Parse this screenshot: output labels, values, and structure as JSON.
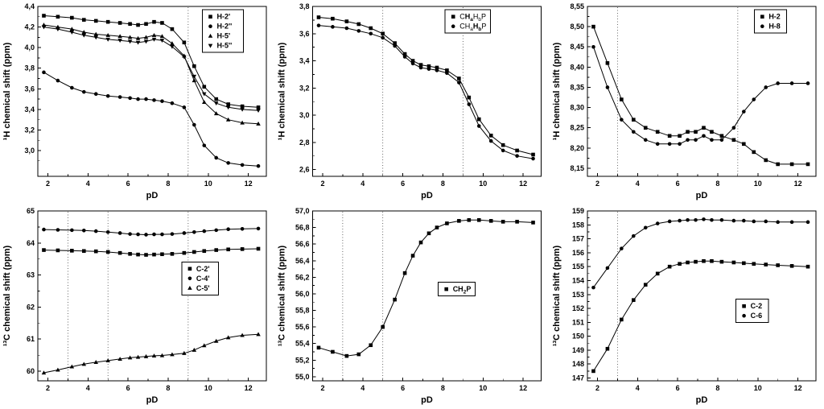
{
  "colors": {
    "foreground": "#000000",
    "background": "#ffffff"
  },
  "chart_data": [
    {
      "name": "h1-sugar-protons",
      "type": "line",
      "xlabel": "pD",
      "ylabel": "¹H chemical shift (ppm)",
      "xlim": [
        1.5,
        12.9
      ],
      "ylim": [
        2.75,
        4.4
      ],
      "xticks": [
        2,
        4,
        6,
        8,
        10,
        12
      ],
      "yticks": [
        3.0,
        3.2,
        3.4,
        3.6,
        3.8,
        4.0,
        4.2,
        4.4
      ],
      "ytick_decimals": 1,
      "decimal_comma": true,
      "grid": false,
      "vlines": [
        9
      ],
      "legend": {
        "x": 0.72,
        "y": 0.02
      },
      "x": [
        1.8,
        2.5,
        3.2,
        3.8,
        4.4,
        5.0,
        5.6,
        6.1,
        6.5,
        6.9,
        7.3,
        7.7,
        8.2,
        8.8,
        9.3,
        9.8,
        10.4,
        11.0,
        11.7,
        12.5
      ],
      "series": [
        {
          "label": "**H-2'**",
          "marker": "square",
          "y": [
            4.31,
            4.3,
            4.29,
            4.27,
            4.26,
            4.25,
            4.24,
            4.23,
            4.22,
            4.23,
            4.25,
            4.24,
            4.18,
            4.05,
            3.82,
            3.62,
            3.5,
            3.45,
            3.43,
            3.42
          ]
        },
        {
          "label": "**H-2''**",
          "marker": "circle",
          "y": [
            3.76,
            3.68,
            3.61,
            3.57,
            3.55,
            3.53,
            3.52,
            3.51,
            3.5,
            3.5,
            3.49,
            3.48,
            3.46,
            3.42,
            3.25,
            3.05,
            2.93,
            2.88,
            2.86,
            2.85
          ]
        },
        {
          "label": "**H-5'**",
          "marker": "triangle-up",
          "y": [
            4.22,
            4.2,
            4.18,
            4.15,
            4.13,
            4.12,
            4.11,
            4.1,
            4.09,
            4.1,
            4.12,
            4.11,
            4.04,
            3.92,
            3.68,
            3.47,
            3.36,
            3.3,
            3.27,
            3.26
          ]
        },
        {
          "label": "**H-5''**",
          "marker": "triangle-down",
          "y": [
            4.2,
            4.18,
            4.15,
            4.12,
            4.1,
            4.08,
            4.07,
            4.06,
            4.05,
            4.06,
            4.08,
            4.07,
            4.01,
            3.91,
            3.72,
            3.55,
            3.46,
            3.42,
            3.4,
            3.39
          ]
        }
      ]
    },
    {
      "name": "h1-pch2-protons",
      "type": "line",
      "xlabel": "pD",
      "ylabel": "¹H chemical shift (ppm)",
      "xlim": [
        1.5,
        12.9
      ],
      "ylim": [
        2.55,
        3.8
      ],
      "xticks": [
        2,
        4,
        6,
        8,
        10,
        12
      ],
      "yticks": [
        2.6,
        2.8,
        3.0,
        3.2,
        3.4,
        3.6,
        3.8
      ],
      "ytick_decimals": 1,
      "decimal_comma": true,
      "grid": false,
      "vlines": [
        5,
        9
      ],
      "legend": {
        "x": 0.58,
        "y": 0.02
      },
      "x": [
        1.8,
        2.5,
        3.2,
        3.8,
        4.4,
        5.0,
        5.6,
        6.1,
        6.5,
        6.9,
        7.3,
        7.7,
        8.2,
        8.8,
        9.3,
        9.8,
        10.4,
        11.0,
        11.7,
        12.5
      ],
      "series": [
        {
          "label": "C**H**_{**a**}H_{b}P",
          "marker": "square",
          "y": [
            3.72,
            3.71,
            3.69,
            3.67,
            3.64,
            3.6,
            3.53,
            3.45,
            3.4,
            3.37,
            3.36,
            3.35,
            3.33,
            3.27,
            3.13,
            2.97,
            2.85,
            2.78,
            2.74,
            2.71
          ]
        },
        {
          "label": "CH_{a}**H**_{**b**}P",
          "marker": "circle",
          "y": [
            3.66,
            3.65,
            3.64,
            3.62,
            3.6,
            3.57,
            3.51,
            3.43,
            3.38,
            3.35,
            3.34,
            3.33,
            3.31,
            3.24,
            3.08,
            2.92,
            2.81,
            2.74,
            2.7,
            2.68
          ]
        }
      ]
    },
    {
      "name": "h1-base-protons",
      "type": "line",
      "xlabel": "pD",
      "ylabel": "¹H chemical shift (ppm)",
      "xlim": [
        1.5,
        12.9
      ],
      "ylim": [
        8.13,
        8.55
      ],
      "xticks": [
        2,
        4,
        6,
        8,
        10,
        12
      ],
      "yticks": [
        8.15,
        8.2,
        8.25,
        8.3,
        8.35,
        8.4,
        8.45,
        8.5,
        8.55
      ],
      "ytick_decimals": 2,
      "decimal_comma": true,
      "grid": false,
      "vlines": [
        3,
        9
      ],
      "legend": {
        "x": 0.73,
        "y": 0.02
      },
      "x": [
        1.8,
        2.5,
        3.2,
        3.8,
        4.4,
        5.0,
        5.6,
        6.1,
        6.5,
        6.9,
        7.3,
        7.7,
        8.2,
        8.8,
        9.3,
        9.8,
        10.4,
        11.0,
        11.7,
        12.5
      ],
      "series": [
        {
          "label": "**H-2**",
          "marker": "square",
          "y": [
            8.5,
            8.41,
            8.32,
            8.27,
            8.25,
            8.24,
            8.23,
            8.23,
            8.24,
            8.24,
            8.25,
            8.24,
            8.23,
            8.22,
            8.21,
            8.19,
            8.17,
            8.16,
            8.16,
            8.16
          ]
        },
        {
          "label": "**H-8**",
          "marker": "circle",
          "y": [
            8.45,
            8.35,
            8.27,
            8.24,
            8.22,
            8.21,
            8.21,
            8.21,
            8.22,
            8.22,
            8.23,
            8.22,
            8.22,
            8.25,
            8.29,
            8.32,
            8.35,
            8.36,
            8.36,
            8.36
          ]
        }
      ]
    },
    {
      "name": "c13-sugar-carbons",
      "type": "line",
      "xlabel": "pD",
      "ylabel": "¹³C chemical shift (ppm)",
      "xlim": [
        1.5,
        12.9
      ],
      "ylim": [
        59.7,
        65.0
      ],
      "xticks": [
        2,
        4,
        6,
        8,
        10,
        12
      ],
      "yticks": [
        60,
        61,
        62,
        63,
        64,
        65
      ],
      "ytick_decimals": 0,
      "decimal_comma": false,
      "grid": false,
      "vlines": [
        3,
        5,
        9
      ],
      "legend": {
        "x": 0.63,
        "y": 0.3
      },
      "x": [
        1.8,
        2.5,
        3.2,
        3.8,
        4.4,
        5.0,
        5.6,
        6.1,
        6.5,
        6.9,
        7.3,
        7.7,
        8.2,
        8.8,
        9.3,
        9.8,
        10.4,
        11.0,
        11.7,
        12.5
      ],
      "series": [
        {
          "label": "**C-2'**",
          "marker": "square",
          "y": [
            63.78,
            63.77,
            63.76,
            63.75,
            63.74,
            63.72,
            63.69,
            63.66,
            63.64,
            63.63,
            63.64,
            63.65,
            63.66,
            63.69,
            63.72,
            63.75,
            63.78,
            63.8,
            63.81,
            63.82
          ]
        },
        {
          "label": "**C-4'**",
          "marker": "circle",
          "y": [
            64.42,
            64.41,
            64.4,
            64.39,
            64.37,
            64.34,
            64.31,
            64.28,
            64.27,
            64.26,
            64.27,
            64.27,
            64.28,
            64.31,
            64.34,
            64.37,
            64.4,
            64.43,
            64.44,
            64.45
          ]
        },
        {
          "label": "**C-5'**",
          "marker": "triangle-up",
          "y": [
            59.95,
            60.04,
            60.14,
            60.22,
            60.28,
            60.33,
            60.38,
            60.42,
            60.44,
            60.46,
            60.48,
            60.49,
            60.52,
            60.56,
            60.66,
            60.8,
            60.94,
            61.05,
            61.12,
            61.15
          ]
        }
      ]
    },
    {
      "name": "c13-pch2-carbon",
      "type": "line",
      "xlabel": "pD",
      "ylabel": "¹³C chemical shift (ppm)",
      "xlim": [
        1.5,
        12.9
      ],
      "ylim": [
        54.95,
        57.0
      ],
      "xticks": [
        2,
        4,
        6,
        8,
        10,
        12
      ],
      "yticks": [
        55.0,
        55.2,
        55.4,
        55.6,
        55.8,
        56.0,
        56.2,
        56.4,
        56.6,
        56.8,
        57.0
      ],
      "ytick_decimals": 1,
      "decimal_comma": true,
      "grid": false,
      "vlines": [
        3,
        5
      ],
      "legend": {
        "x": 0.55,
        "y": 0.42
      },
      "x": [
        1.8,
        2.5,
        3.2,
        3.8,
        4.4,
        5.0,
        5.6,
        6.1,
        6.5,
        6.9,
        7.3,
        7.7,
        8.2,
        8.8,
        9.3,
        9.8,
        10.4,
        11.0,
        11.7,
        12.5
      ],
      "series": [
        {
          "label": "**CH**_{**2**}**P**",
          "marker": "square",
          "y": [
            55.35,
            55.3,
            55.25,
            55.27,
            55.38,
            55.6,
            55.93,
            56.25,
            56.46,
            56.62,
            56.73,
            56.8,
            56.85,
            56.88,
            56.89,
            56.89,
            56.88,
            56.87,
            56.87,
            56.86
          ]
        }
      ]
    },
    {
      "name": "c13-base-carbons",
      "type": "line",
      "xlabel": "pD",
      "ylabel": "¹³C chemical shift (ppm)",
      "xlim": [
        1.5,
        12.9
      ],
      "ylim": [
        146.8,
        159.0
      ],
      "xticks": [
        2,
        4,
        6,
        8,
        10,
        12
      ],
      "yticks": [
        147,
        148,
        149,
        150,
        151,
        152,
        153,
        154,
        155,
        156,
        157,
        158,
        159
      ],
      "ytick_decimals": 0,
      "decimal_comma": false,
      "grid": false,
      "vlines": [
        3
      ],
      "legend": {
        "x": 0.65,
        "y": 0.52
      },
      "x": [
        1.8,
        2.5,
        3.2,
        3.8,
        4.4,
        5.0,
        5.6,
        6.1,
        6.5,
        6.9,
        7.3,
        7.7,
        8.2,
        8.8,
        9.3,
        9.8,
        10.4,
        11.0,
        11.7,
        12.5
      ],
      "series": [
        {
          "label": "**C-2**",
          "marker": "square",
          "y": [
            147.5,
            149.1,
            151.2,
            152.6,
            153.7,
            154.5,
            155.0,
            155.2,
            155.3,
            155.35,
            155.4,
            155.4,
            155.35,
            155.3,
            155.25,
            155.2,
            155.15,
            155.1,
            155.05,
            155.0
          ]
        },
        {
          "label": "**C-6**",
          "marker": "circle",
          "y": [
            153.5,
            154.9,
            156.3,
            157.2,
            157.8,
            158.1,
            158.25,
            158.3,
            158.35,
            158.35,
            158.4,
            158.35,
            158.35,
            158.3,
            158.3,
            158.25,
            158.25,
            158.2,
            158.2,
            158.2
          ]
        }
      ]
    }
  ]
}
